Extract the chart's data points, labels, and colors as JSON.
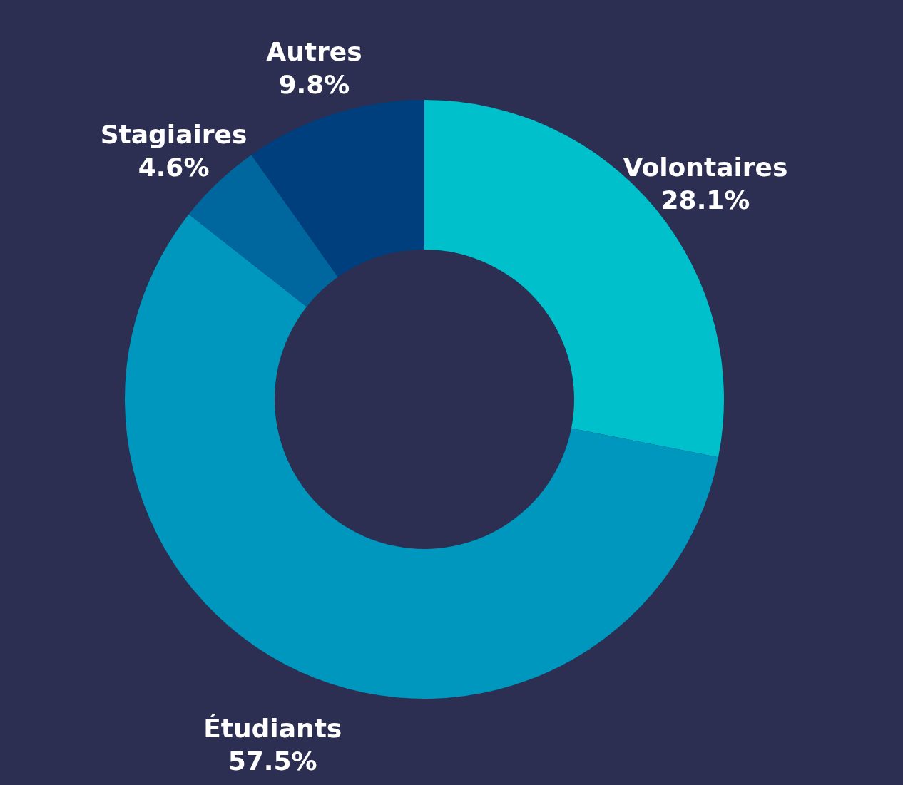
{
  "chart_data": {
    "type": "donut",
    "categories": [
      "Volontaires",
      "Étudiants",
      "Stagiaires",
      "Autres"
    ],
    "values": [
      28.1,
      57.5,
      4.6,
      9.8
    ],
    "value_labels": [
      "28.1%",
      "57.5%",
      "4.6%",
      "9.8%"
    ],
    "colors": [
      "#00c1cb",
      "#0097be",
      "#00679e",
      "#003f7e"
    ]
  }
}
